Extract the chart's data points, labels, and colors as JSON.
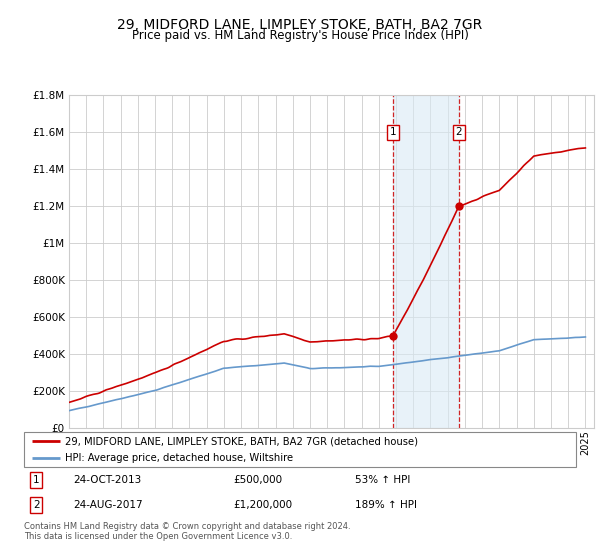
{
  "title": "29, MIDFORD LANE, LIMPLEY STOKE, BATH, BA2 7GR",
  "subtitle": "Price paid vs. HM Land Registry's House Price Index (HPI)",
  "title_fontsize": 10,
  "subtitle_fontsize": 8.5,
  "ylim": [
    0,
    1800000
  ],
  "yticks": [
    0,
    200000,
    400000,
    600000,
    800000,
    1000000,
    1200000,
    1400000,
    1600000,
    1800000
  ],
  "ytick_labels": [
    "£0",
    "£200K",
    "£400K",
    "£600K",
    "£800K",
    "£1M",
    "£1.2M",
    "£1.4M",
    "£1.6M",
    "£1.8M"
  ],
  "sale1_year": 2013.81,
  "sale1_price": 500000,
  "sale2_year": 2017.64,
  "sale2_price": 1200000,
  "red_line_color": "#cc0000",
  "blue_line_color": "#6699cc",
  "shade_color": "#daeaf5",
  "vline_color": "#cc0000",
  "legend_line1": "29, MIDFORD LANE, LIMPLEY STOKE, BATH, BA2 7GR (detached house)",
  "legend_line2": "HPI: Average price, detached house, Wiltshire",
  "footer1": "Contains HM Land Registry data © Crown copyright and database right 2024.",
  "footer2": "This data is licensed under the Open Government Licence v3.0.",
  "annot1_num": "1",
  "annot2_num": "2",
  "annot1_date": "24-OCT-2013",
  "annot1_price": "£500,000",
  "annot1_pct": "53% ↑ HPI",
  "annot2_date": "24-AUG-2017",
  "annot2_price": "£1,200,000",
  "annot2_pct": "189% ↑ HPI"
}
